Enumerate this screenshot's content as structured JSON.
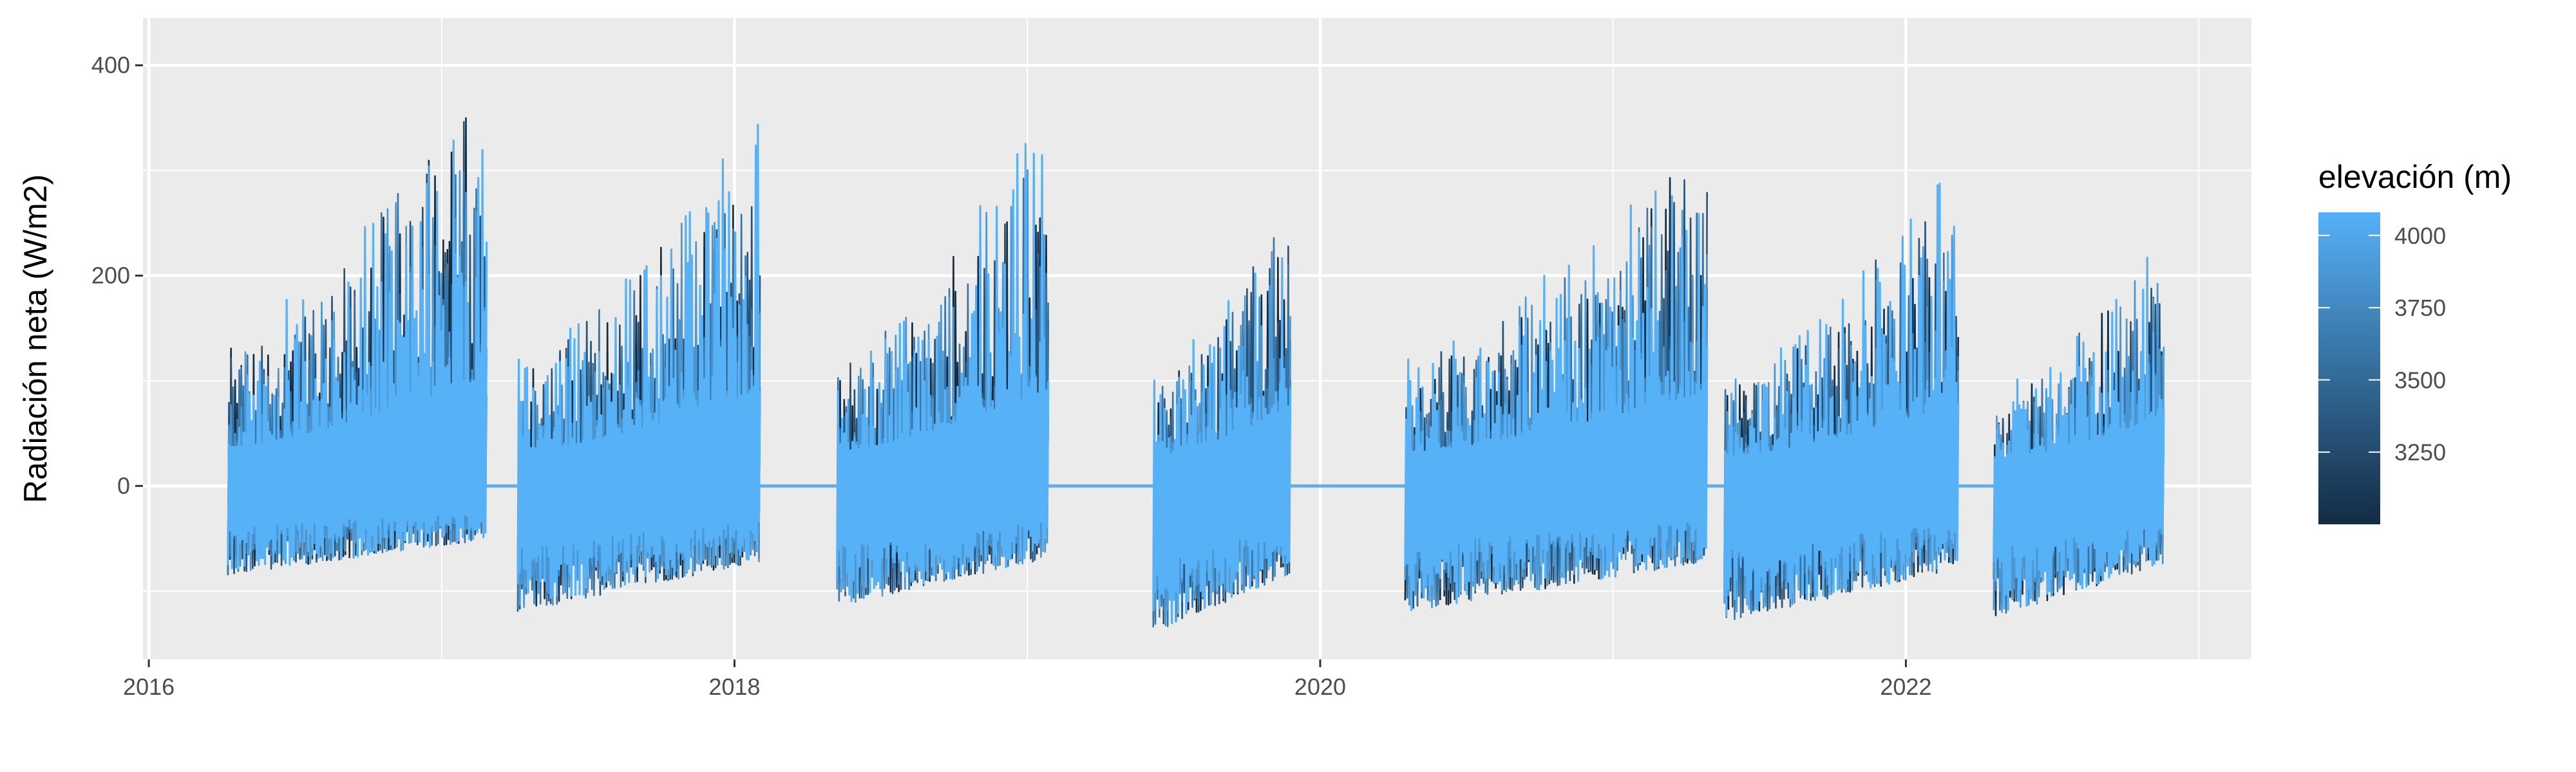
{
  "chart_data": {
    "type": "line",
    "title": "",
    "xlabel": "",
    "ylabel": "Radiación neta (W/m2)",
    "x_ticks": [
      "2016",
      "2018",
      "2020",
      "2022"
    ],
    "y_ticks": [
      "0",
      "200",
      "400"
    ],
    "xlim": [
      2015.98,
      2023.18
    ],
    "ylim": [
      -165,
      445
    ],
    "grid": true,
    "legend": {
      "title": "elevación (m)",
      "position": "right",
      "type": "colorbar",
      "range": [
        3000,
        4080
      ],
      "ticks": [
        "3250",
        "3500",
        "3750",
        "4000"
      ],
      "color_low": "#132B43",
      "color_high": "#56B1F7"
    },
    "colors": {
      "panel": "#EBEBEB",
      "grid_major": "#FFFFFF",
      "grid_minor": "#F5F5F5"
    },
    "series_envelope": {
      "description_seasons": [
        {
          "start": 2016.27,
          "end": 2017.15,
          "max": 415,
          "min": -85
        },
        {
          "start": 2017.26,
          "end": 2018.09,
          "max": 362,
          "min": -120
        },
        {
          "start": 2018.35,
          "end": 2019.07,
          "max": 368,
          "min": -115
        },
        {
          "start": 2019.43,
          "end": 2019.9,
          "max": 303,
          "min": -140
        },
        {
          "start": 2020.29,
          "end": 2021.32,
          "max": 357,
          "min": -120
        },
        {
          "start": 2021.38,
          "end": 2022.18,
          "max": 313,
          "min": -130
        },
        {
          "start": 2022.3,
          "end": 2022.88,
          "max": 265,
          "min": -125
        }
      ],
      "flat_value": 0
    }
  }
}
